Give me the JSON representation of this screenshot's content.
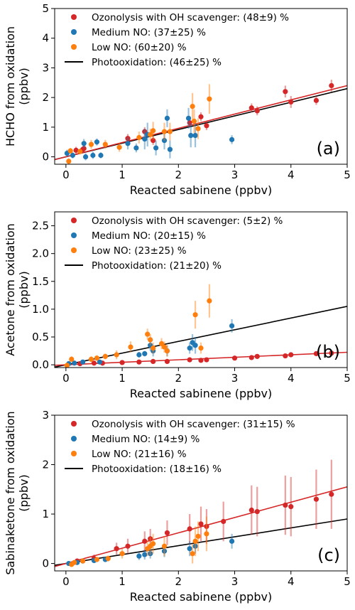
{
  "chart_data": [
    {
      "type": "scatter",
      "panel_label": "(a)",
      "xlabel": "Reacted sabinene (ppbv)",
      "ylabel_lines": [
        "HCHO from oxidation",
        "(ppbv)"
      ],
      "xlim": [
        -0.2,
        5
      ],
      "ylim": [
        -0.25,
        5
      ],
      "xticks": [
        0,
        1,
        2,
        3,
        4,
        5
      ],
      "yticks": [
        0,
        1,
        2,
        3,
        4,
        5
      ],
      "legend_position": "top-left",
      "series": [
        {
          "name": "Ozonolysis with OH scavenger: (48±9) %",
          "color": "#d62728",
          "kind": "points",
          "points": [
            [
              0.18,
              0.22
            ],
            [
              0.3,
              0.25
            ],
            [
              0.32,
              0.28
            ],
            [
              1.1,
              0.62
            ],
            [
              1.4,
              0.85
            ],
            [
              1.55,
              0.55
            ],
            [
              2.2,
              1.15
            ],
            [
              2.4,
              1.35
            ],
            [
              2.5,
              1.05
            ],
            [
              3.3,
              1.65
            ],
            [
              3.4,
              1.55
            ],
            [
              3.9,
              2.2
            ],
            [
              4.0,
              1.85
            ],
            [
              4.45,
              1.9
            ],
            [
              4.72,
              2.4
            ]
          ],
          "errors": [
            0.12,
            0.1,
            0.1,
            0.15,
            0.15,
            0.15,
            0.15,
            0.15,
            0.15,
            0.15,
            0.15,
            0.2,
            0.2,
            0.15,
            0.2
          ]
        },
        {
          "name": "Medium NO: (37±25) %",
          "color": "#1f77b4",
          "kind": "points",
          "points": [
            [
              0.02,
              0.12
            ],
            [
              0.12,
              0.05
            ],
            [
              0.32,
              0.45
            ],
            [
              0.35,
              0.0
            ],
            [
              0.48,
              0.05
            ],
            [
              0.55,
              0.5
            ],
            [
              0.62,
              0.05
            ],
            [
              1.1,
              0.45
            ],
            [
              1.25,
              0.3
            ],
            [
              1.4,
              0.6
            ],
            [
              1.45,
              0.75
            ],
            [
              1.6,
              0.3
            ],
            [
              1.75,
              0.55
            ],
            [
              1.8,
              1.3
            ],
            [
              1.85,
              0.25
            ],
            [
              2.18,
              1.3
            ],
            [
              2.22,
              0.72
            ],
            [
              2.3,
              0.72
            ],
            [
              2.95,
              0.58
            ]
          ],
          "errors": [
            0.12,
            0.1,
            0.15,
            0.12,
            0.12,
            0.12,
            0.1,
            0.2,
            0.15,
            0.35,
            0.4,
            0.25,
            0.3,
            0.3,
            0.3,
            0.35,
            0.4,
            0.4,
            0.15
          ]
        },
        {
          "name": "Low NO: (60±20) %",
          "color": "#ff7f0e",
          "kind": "points",
          "points": [
            [
              0.05,
              -0.15
            ],
            [
              0.08,
              0.2
            ],
            [
              0.45,
              0.42
            ],
            [
              0.7,
              0.42
            ],
            [
              0.95,
              0.32
            ],
            [
              1.3,
              0.65
            ],
            [
              1.5,
              0.75
            ],
            [
              1.55,
              0.88
            ],
            [
              1.75,
              0.85
            ],
            [
              2.25,
              1.7
            ],
            [
              2.28,
              1.2
            ],
            [
              2.35,
              0.95
            ],
            [
              2.55,
              1.95
            ],
            [
              1.85,
              0.85
            ],
            [
              0.25,
              0.18
            ]
          ],
          "errors": [
            0.1,
            0.1,
            0.15,
            0.15,
            0.15,
            0.2,
            0.2,
            0.3,
            0.3,
            0.45,
            0.4,
            0.35,
            0.5,
            0.3,
            0.1
          ]
        },
        {
          "name": "Photooxidation: (46±25) %",
          "color": "#000000",
          "kind": "line",
          "slope": 0.46
        }
      ],
      "fit_lines": [
        {
          "color": "#d62728",
          "slope": 0.48
        }
      ]
    },
    {
      "type": "scatter",
      "panel_label": "(b)",
      "xlabel": "Reacted sabinene (ppbv)",
      "ylabel_lines": [
        "Acetone from oxidation",
        "(ppbv)"
      ],
      "xlim": [
        -0.2,
        5
      ],
      "ylim": [
        -0.05,
        2.75
      ],
      "xticks": [
        0,
        1,
        2,
        3,
        4,
        5
      ],
      "yticks": [
        0.0,
        0.5,
        1.0,
        1.5,
        2.0,
        2.5
      ],
      "legend_position": "top-left",
      "series": [
        {
          "name": "Ozonolysis with OH scavenger: (5±2) %",
          "color": "#d62728",
          "kind": "points",
          "points": [
            [
              0.25,
              0.02
            ],
            [
              0.5,
              0.03
            ],
            [
              0.65,
              0.03
            ],
            [
              1.0,
              0.04
            ],
            [
              1.3,
              0.05
            ],
            [
              1.55,
              0.06
            ],
            [
              1.8,
              0.06
            ],
            [
              2.2,
              0.09
            ],
            [
              2.4,
              0.08
            ],
            [
              2.5,
              0.09
            ],
            [
              3.0,
              0.12
            ],
            [
              3.3,
              0.13
            ],
            [
              3.4,
              0.15
            ],
            [
              3.9,
              0.16
            ],
            [
              4.0,
              0.18
            ],
            [
              4.45,
              0.2
            ],
            [
              4.72,
              0.21
            ]
          ],
          "errors": [
            0.01,
            0.01,
            0.01,
            0.01,
            0.01,
            0.01,
            0.01,
            0.02,
            0.02,
            0.02,
            0.02,
            0.02,
            0.02,
            0.02,
            0.02,
            0.02,
            0.02
          ]
        },
        {
          "name": "Medium NO: (20±15) %",
          "color": "#1f77b4",
          "kind": "points",
          "points": [
            [
              0.05,
              0.02
            ],
            [
              0.15,
              0.03
            ],
            [
              0.3,
              0.05
            ],
            [
              0.6,
              0.05
            ],
            [
              1.3,
              0.18
            ],
            [
              1.4,
              0.2
            ],
            [
              1.5,
              0.35
            ],
            [
              1.55,
              0.25
            ],
            [
              1.8,
              0.25
            ],
            [
              2.2,
              0.3
            ],
            [
              2.25,
              0.4
            ],
            [
              2.3,
              0.35
            ],
            [
              2.95,
              0.7
            ]
          ],
          "errors": [
            0.02,
            0.02,
            0.03,
            0.03,
            0.05,
            0.05,
            0.1,
            0.1,
            0.1,
            0.1,
            0.15,
            0.15,
            0.12
          ]
        },
        {
          "name": "Low NO: (23±25) %",
          "color": "#ff7f0e",
          "kind": "points",
          "points": [
            [
              0.02,
              -0.01
            ],
            [
              0.1,
              0.1
            ],
            [
              0.45,
              0.1
            ],
            [
              0.55,
              0.12
            ],
            [
              0.7,
              0.15
            ],
            [
              0.9,
              0.18
            ],
            [
              1.15,
              0.32
            ],
            [
              1.45,
              0.55
            ],
            [
              1.5,
              0.45
            ],
            [
              1.55,
              0.3
            ],
            [
              1.7,
              0.38
            ],
            [
              1.75,
              0.32
            ],
            [
              1.8,
              0.25
            ],
            [
              2.3,
              0.9
            ],
            [
              2.55,
              1.15
            ],
            [
              2.4,
              0.3
            ]
          ],
          "errors": [
            0.03,
            0.05,
            0.05,
            0.05,
            0.05,
            0.08,
            0.1,
            0.1,
            0.1,
            0.1,
            0.1,
            0.1,
            0.1,
            0.25,
            0.3,
            0.1
          ]
        },
        {
          "name": "Photooxidation: (21±20) %",
          "color": "#000000",
          "kind": "line",
          "slope": 0.21
        }
      ],
      "fit_lines": [
        {
          "color": "#d62728",
          "slope": 0.045
        }
      ]
    },
    {
      "type": "scatter",
      "panel_label": "(c)",
      "xlabel": "Reacted sabinene (ppbv)",
      "ylabel_lines": [
        "Sabinaketone from oxidation",
        "(ppbv)"
      ],
      "xlim": [
        -0.2,
        5
      ],
      "ylim": [
        -0.15,
        3
      ],
      "xticks": [
        0,
        1,
        2,
        3,
        4,
        5
      ],
      "yticks": [
        0,
        1,
        2,
        3
      ],
      "legend_position": "top-left",
      "series": [
        {
          "name": "Ozonolysis with OH scavenger: (31±15) %",
          "color": "#d62728",
          "kind": "points",
          "points": [
            [
              0.2,
              0.05
            ],
            [
              0.5,
              0.1
            ],
            [
              0.9,
              0.3
            ],
            [
              1.1,
              0.35
            ],
            [
              1.4,
              0.45
            ],
            [
              1.5,
              0.5
            ],
            [
              1.8,
              0.62
            ],
            [
              2.2,
              0.7
            ],
            [
              2.4,
              0.8
            ],
            [
              2.5,
              0.75
            ],
            [
              2.8,
              0.85
            ],
            [
              3.3,
              1.08
            ],
            [
              3.4,
              1.05
            ],
            [
              3.9,
              1.18
            ],
            [
              4.0,
              1.15
            ],
            [
              4.45,
              1.3
            ],
            [
              4.72,
              1.4
            ]
          ],
          "errors": [
            0.05,
            0.08,
            0.12,
            0.15,
            0.2,
            0.2,
            0.25,
            0.3,
            0.35,
            0.35,
            0.4,
            0.5,
            0.5,
            0.6,
            0.6,
            0.6,
            0.7
          ]
        },
        {
          "name": "Medium NO: (14±9) %",
          "color": "#1f77b4",
          "kind": "points",
          "points": [
            [
              0.05,
              0.0
            ],
            [
              0.2,
              0.02
            ],
            [
              0.3,
              0.05
            ],
            [
              0.5,
              0.06
            ],
            [
              0.7,
              0.08
            ],
            [
              1.3,
              0.15
            ],
            [
              1.4,
              0.18
            ],
            [
              1.5,
              0.2
            ],
            [
              1.75,
              0.25
            ],
            [
              2.2,
              0.3
            ],
            [
              2.3,
              0.35
            ],
            [
              2.95,
              0.45
            ]
          ],
          "errors": [
            0.02,
            0.03,
            0.03,
            0.03,
            0.04,
            0.08,
            0.1,
            0.1,
            0.12,
            0.15,
            0.15,
            0.15
          ]
        },
        {
          "name": "Low NO: (21±16) %",
          "color": "#ff7f0e",
          "kind": "points",
          "points": [
            [
              0.1,
              -0.02
            ],
            [
              0.15,
              0.02
            ],
            [
              0.3,
              0.05
            ],
            [
              0.55,
              0.08
            ],
            [
              0.75,
              0.1
            ],
            [
              1.0,
              0.2
            ],
            [
              1.45,
              0.3
            ],
            [
              1.5,
              0.35
            ],
            [
              1.55,
              0.4
            ],
            [
              1.75,
              0.35
            ],
            [
              2.3,
              0.45
            ],
            [
              2.35,
              0.55
            ],
            [
              2.5,
              0.6
            ],
            [
              2.25,
              0.2
            ]
          ],
          "errors": [
            0.03,
            0.03,
            0.04,
            0.05,
            0.06,
            0.1,
            0.15,
            0.18,
            0.2,
            0.2,
            0.3,
            0.3,
            0.35,
            0.2
          ]
        },
        {
          "name": "Photooxidation: (18±16) %",
          "color": "#000000",
          "kind": "line",
          "slope": 0.18
        }
      ],
      "fit_lines": [
        {
          "color": "#d62728",
          "slope": 0.31
        }
      ]
    }
  ]
}
